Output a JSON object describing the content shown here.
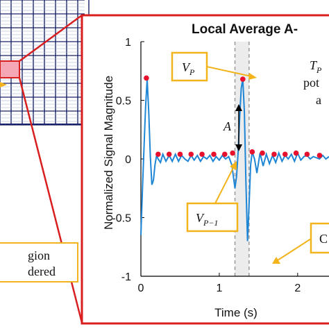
{
  "figure": {
    "title": "Local Average A-",
    "annotations": {
      "vp": "V",
      "vp_sub": "P",
      "vp1": "V",
      "vp1_sub": "P−1",
      "amplitude": "A",
      "tp": "T",
      "tp_sub": "P",
      "tp_line2": "pot",
      "tp_line3": "a",
      "c_label": "C",
      "region_line1": "gion",
      "region_line2": "dered"
    },
    "colors": {
      "frame_red": "#d81e1e",
      "signal_blue": "#1f86d6",
      "peak_red": "#e8112d",
      "callout_orange": "#f2b31b",
      "window_fill": "#ececec",
      "grid_navy": "#16216a",
      "grid_line": "#9ea7c7",
      "inset_pink": "#f5a7b6"
    }
  },
  "chart_data": {
    "type": "line",
    "title": "Local Average A-",
    "xlabel": "Time (s)",
    "ylabel": "Normalized Signal Magnitude",
    "xlim": [
      0,
      2.4
    ],
    "ylim": [
      -1,
      1
    ],
    "x_ticks": [
      0,
      1,
      2
    ],
    "x_tick_labels": [
      "0",
      "1",
      "2"
    ],
    "y_ticks": [
      -1,
      -0.5,
      0,
      0.5,
      1
    ],
    "y_tick_labels": [
      "-1",
      "-0.5",
      "0",
      "0.5",
      "1"
    ],
    "grid": false,
    "highlight_window": [
      1.2,
      1.38
    ],
    "series": [
      {
        "type": "line",
        "x": [
          0.0,
          0.02,
          0.04,
          0.06,
          0.08,
          0.1,
          0.12,
          0.14,
          0.16,
          0.18,
          0.2,
          0.22,
          0.25,
          0.28,
          0.32,
          0.36,
          0.4,
          0.44,
          0.48,
          0.52,
          0.56,
          0.6,
          0.64,
          0.68,
          0.72,
          0.76,
          0.8,
          0.84,
          0.88,
          0.92,
          0.96,
          1.0,
          1.04,
          1.08,
          1.12,
          1.16,
          1.2,
          1.22,
          1.24,
          1.26,
          1.28,
          1.3,
          1.32,
          1.34,
          1.36,
          1.38,
          1.4,
          1.42,
          1.45,
          1.48,
          1.52,
          1.56,
          1.6,
          1.64,
          1.68,
          1.72,
          1.76,
          1.8,
          1.84,
          1.88,
          1.92,
          1.96,
          2.0,
          2.04,
          2.08,
          2.12,
          2.16,
          2.2,
          2.24,
          2.28,
          2.32,
          2.36,
          2.4
        ],
        "y": [
          -0.65,
          -0.25,
          0.1,
          0.45,
          0.68,
          0.4,
          0.02,
          -0.22,
          -0.18,
          -0.05,
          0.03,
          0.0,
          -0.03,
          0.04,
          -0.02,
          0.03,
          -0.02,
          0.04,
          -0.02,
          0.03,
          0.0,
          -0.02,
          0.03,
          -0.01,
          0.03,
          -0.02,
          0.02,
          0.0,
          0.03,
          -0.02,
          0.02,
          -0.01,
          0.03,
          0.0,
          0.02,
          -0.05,
          -0.25,
          -0.15,
          0.05,
          0.35,
          0.6,
          0.68,
          0.4,
          -0.2,
          -0.7,
          -0.4,
          -0.05,
          0.06,
          0.0,
          -0.12,
          0.05,
          -0.06,
          0.04,
          -0.04,
          0.03,
          -0.03,
          0.05,
          -0.02,
          0.03,
          0.0,
          0.04,
          -0.02,
          0.05,
          -0.01,
          0.02,
          0.03,
          0.0,
          0.02,
          0.01,
          0.0,
          0.03,
          0.0,
          0.02
        ]
      },
      {
        "type": "scatter",
        "name": "",
        "x": [
          0.07,
          0.22,
          0.36,
          0.5,
          0.64,
          0.78,
          0.93,
          1.07,
          1.17,
          1.3,
          1.42,
          1.55,
          1.7,
          1.84,
          1.98,
          2.12,
          2.28
        ],
        "y": [
          0.69,
          0.04,
          0.04,
          0.04,
          0.04,
          0.04,
          0.04,
          0.04,
          0.05,
          0.68,
          0.06,
          0.05,
          0.04,
          0.04,
          0.05,
          0.04,
          0.03
        ]
      }
    ]
  }
}
